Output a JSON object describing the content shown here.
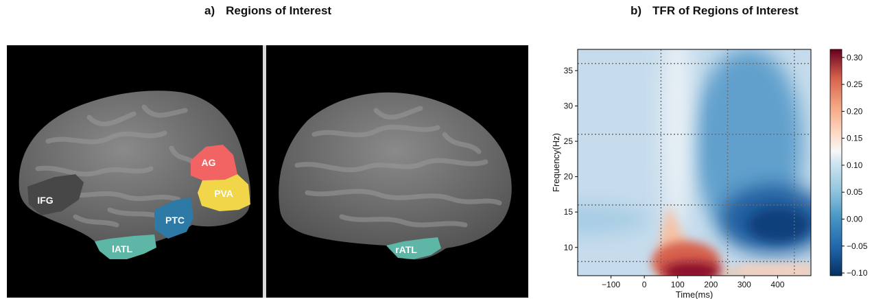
{
  "panel_a": {
    "label": "a)",
    "title": "Regions of Interest",
    "regions": [
      {
        "name": "AG",
        "color": "#f26464"
      },
      {
        "name": "PVA",
        "color": "#f2d64a"
      },
      {
        "name": "IFG",
        "color": "#474747"
      },
      {
        "name": "PTC",
        "color": "#2d7aa6"
      },
      {
        "name": "lATL",
        "color": "#5db6a6"
      },
      {
        "name": "rATL",
        "color": "#5db6a6"
      }
    ]
  },
  "panel_b": {
    "label": "b)",
    "title": "TFR of Regions of Interest"
  },
  "chart_data": {
    "type": "heatmap",
    "xlabel": "Time(ms)",
    "ylabel": "Frequency(Hz)",
    "xlim": [
      -200,
      500
    ],
    "ylim": [
      6,
      38
    ],
    "xticks": [
      -100,
      0,
      100,
      200,
      300,
      400
    ],
    "yticks": [
      10,
      15,
      20,
      25,
      30,
      35
    ],
    "colorbar": {
      "colormap": "RdBu_r",
      "vmin": -0.105,
      "vmax": 0.315,
      "ticks": [
        0.3,
        0.25,
        0.2,
        0.15,
        0.1,
        0.05,
        0.0,
        -0.05,
        -0.1
      ],
      "tick_labels": [
        "0.30",
        "0.25",
        "0.20",
        "0.15",
        "0.10",
        "0.05",
        "0.00",
        "−0.05",
        "−0.10"
      ]
    },
    "dotted_vertical_lines_ms": [
      50,
      250,
      450
    ],
    "dotted_horizontal_lines_hz": [
      8,
      16,
      26,
      36
    ],
    "features": [
      {
        "description": "positive power peak",
        "time_ms": 150,
        "freq_hz": 7,
        "value": 0.31
      },
      {
        "description": "negative power minimum",
        "time_ms": 360,
        "freq_hz": 12,
        "value": -0.1
      }
    ]
  }
}
